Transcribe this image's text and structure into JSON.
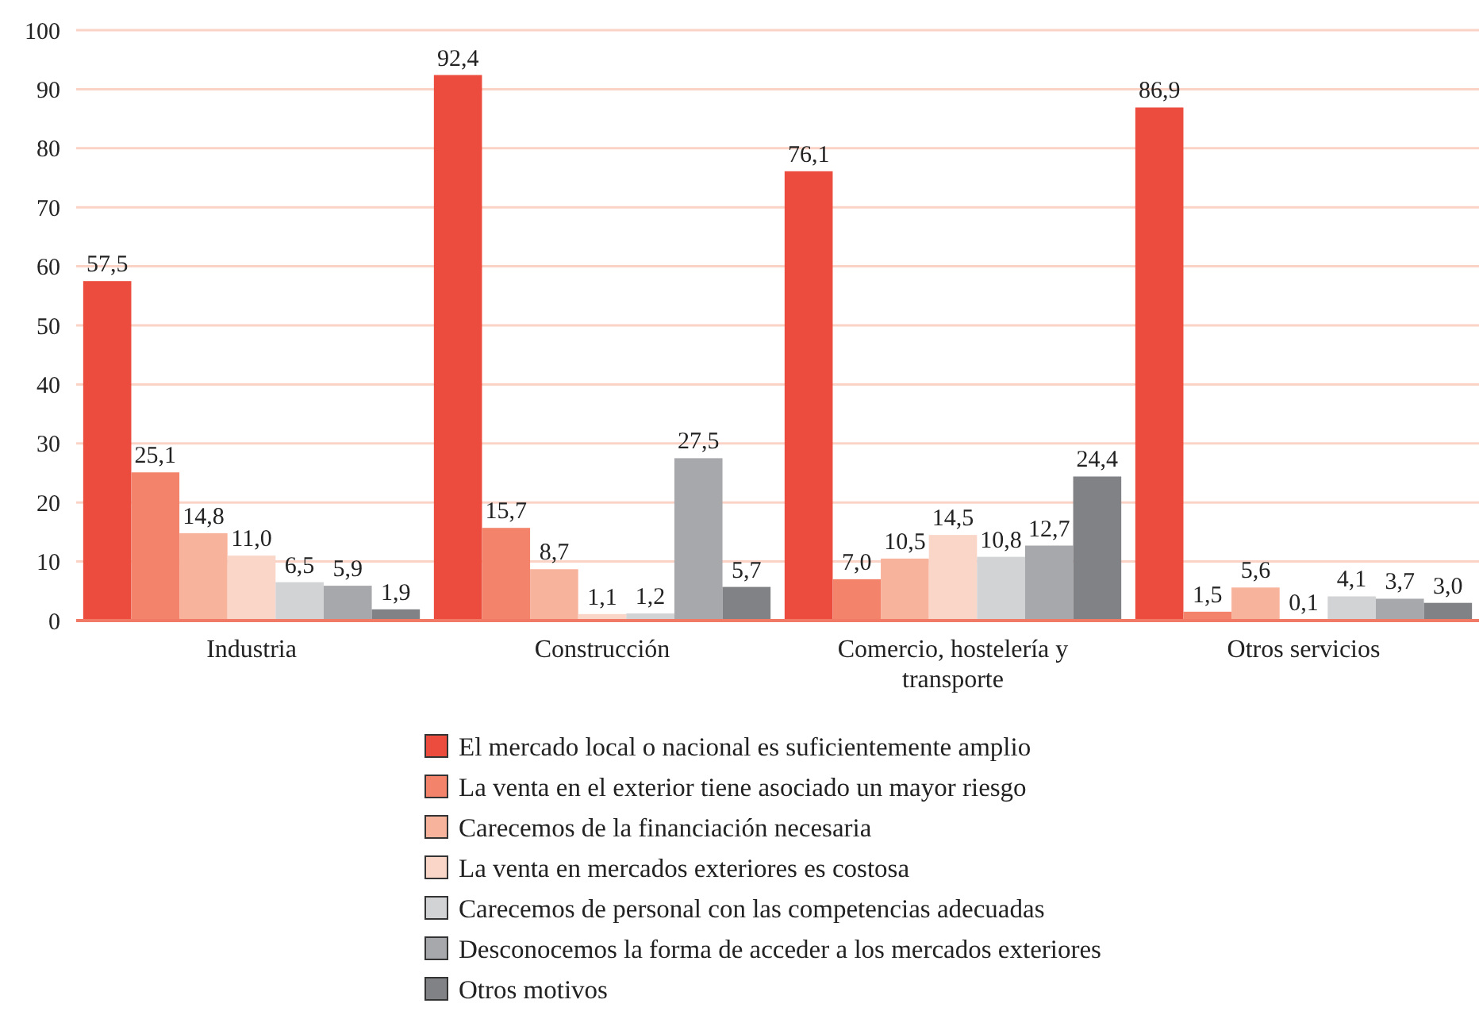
{
  "chart_data": {
    "type": "bar",
    "categories": [
      "Industria",
      "Construcción",
      "Comercio, hostelería y transporte",
      "Otros servicios"
    ],
    "ylim": [
      0,
      100
    ],
    "yticks": [
      0,
      10,
      20,
      30,
      40,
      50,
      60,
      70,
      80,
      90,
      100
    ],
    "grid": "y",
    "legend": "bottom",
    "series": [
      {
        "name": "El mercado local o nacional es suficientemente amplio",
        "color": "#ec4c3d",
        "values": [
          57.5,
          92.4,
          76.1,
          86.9
        ],
        "value_labels": [
          "57,5",
          "92,4",
          "76,1",
          "86,9"
        ]
      },
      {
        "name": "La venta en el exterior tiene asociado un mayor riesgo",
        "color": "#f3836b",
        "values": [
          25.1,
          15.7,
          7.0,
          1.5
        ],
        "value_labels": [
          "25,1",
          "15,7",
          "7,0",
          "1,5"
        ]
      },
      {
        "name": "Carecemos de la financiación necesaria",
        "color": "#f8b39d",
        "values": [
          14.8,
          8.7,
          10.5,
          5.6
        ],
        "value_labels": [
          "14,8",
          "8,7",
          "10,5",
          "5,6"
        ]
      },
      {
        "name": "La venta en mercados exteriores es costosa",
        "color": "#fad6c9",
        "values": [
          11.0,
          1.1,
          14.5,
          0.1
        ],
        "value_labels": [
          "11,0",
          "1,1",
          "14,5",
          "0,1"
        ]
      },
      {
        "name": "Carecemos de personal con las competencias adecuadas",
        "color": "#d2d3d5",
        "values": [
          6.5,
          1.2,
          10.8,
          4.1
        ],
        "value_labels": [
          "6,5",
          "1,2",
          "10,8",
          "4,1"
        ]
      },
      {
        "name": "Desconocemos la forma de acceder a los mercados exteriores",
        "color": "#a7a8ab",
        "values": [
          5.9,
          27.5,
          12.7,
          3.7
        ],
        "value_labels": [
          "5,9",
          "27,5",
          "12,7",
          "3,7"
        ]
      },
      {
        "name": "Otros motivos",
        "color": "#818285",
        "values": [
          1.9,
          5.7,
          24.4,
          3.0
        ],
        "value_labels": [
          "1,9",
          "5,7",
          "24,4",
          "3,0"
        ]
      }
    ]
  }
}
